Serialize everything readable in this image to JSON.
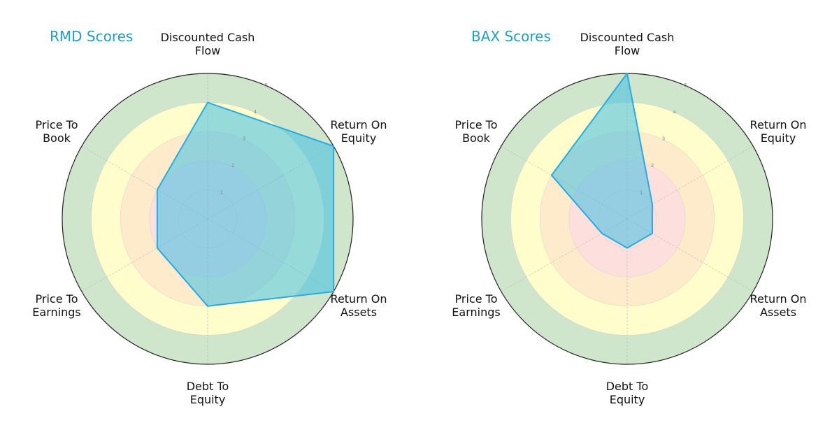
{
  "colors": {
    "accent_title": "#1f9fc4",
    "polygon_fill": "#3fbfe6",
    "polygon_stroke": "#29abe2",
    "ring_0_2": "#fde0dd",
    "ring_2_3": "#fdebcc",
    "ring_3_4": "#fffdcc",
    "ring_4_5": "#cfe5cc"
  },
  "charts": [
    {
      "title": "RMD Scores",
      "labels": {
        "dcf": "Discounted Cash\nFlow",
        "roe": "Return On\nEquity",
        "roa": "Return On\nAssets",
        "de": "Debt To\nEquity",
        "pe": "Price To\nEarnings",
        "pb": "Price To\nBook"
      },
      "ticks": [
        "1",
        "2",
        "3",
        "4",
        "5"
      ]
    },
    {
      "title": "BAX Scores",
      "labels": {
        "dcf": "Discounted Cash\nFlow",
        "roe": "Return On\nEquity",
        "roa": "Return On\nAssets",
        "de": "Debt To\nEquity",
        "pe": "Price To\nEarnings",
        "pb": "Price To\nBook"
      },
      "ticks": [
        "1",
        "2",
        "3",
        "4",
        "5"
      ]
    }
  ],
  "chart_data": [
    {
      "type": "radar",
      "title": "RMD Scores",
      "categories": [
        "Discounted Cash Flow",
        "Return On Equity",
        "Return On Assets",
        "Debt To Equity",
        "Price To Earnings",
        "Price To Book"
      ],
      "values": [
        4,
        5,
        5,
        3,
        2,
        2
      ],
      "rlim": [
        0,
        5
      ],
      "rticks": [
        1,
        2,
        3,
        4,
        5
      ],
      "bands": [
        {
          "range": [
            0,
            2
          ],
          "color": "#fde0dd"
        },
        {
          "range": [
            2,
            3
          ],
          "color": "#fdebcc"
        },
        {
          "range": [
            3,
            4
          ],
          "color": "#fffdcc"
        },
        {
          "range": [
            4,
            5
          ],
          "color": "#cfe5cc"
        }
      ]
    },
    {
      "type": "radar",
      "title": "BAX Scores",
      "categories": [
        "Discounted Cash Flow",
        "Return On Equity",
        "Return On Assets",
        "Debt To Equity",
        "Price To Earnings",
        "Price To Book"
      ],
      "values": [
        5,
        1,
        1,
        1,
        1,
        3
      ],
      "rlim": [
        0,
        5
      ],
      "rticks": [
        1,
        2,
        3,
        4,
        5
      ],
      "bands": [
        {
          "range": [
            0,
            2
          ],
          "color": "#fde0dd"
        },
        {
          "range": [
            2,
            3
          ],
          "color": "#fdebcc"
        },
        {
          "range": [
            3,
            4
          ],
          "color": "#fffdcc"
        },
        {
          "range": [
            4,
            5
          ],
          "color": "#cfe5cc"
        }
      ]
    }
  ]
}
